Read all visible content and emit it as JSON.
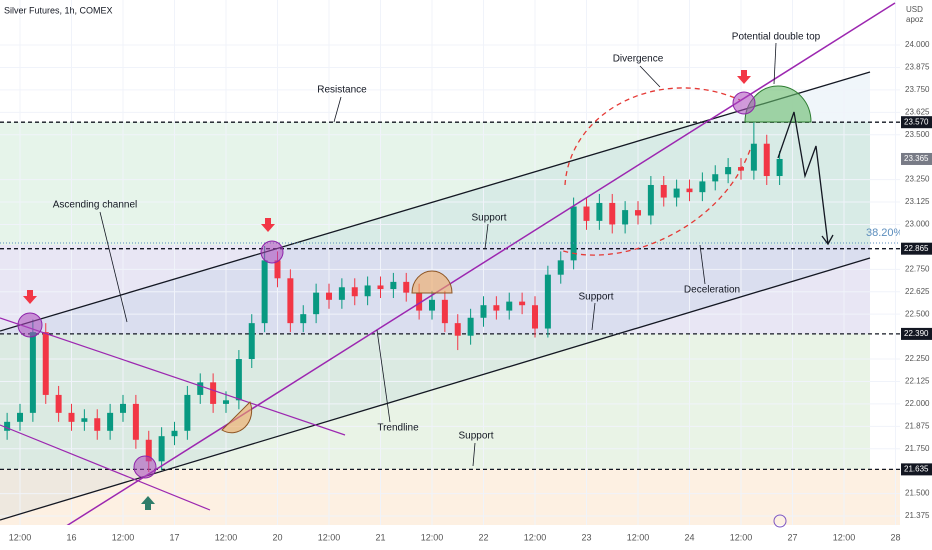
{
  "chart_data": {
    "type": "candlestick",
    "title": "Silver Futures, 1h, COMEX",
    "currency": "USD",
    "scale_label": "apoz",
    "up_color": "#089981",
    "down_color": "#f23645",
    "xlim": [
      -4.66,
      205.05
    ],
    "ylim": [
      21.325,
      24.251
    ],
    "xticks": [
      {
        "value": 0,
        "label": "12:00"
      },
      {
        "value": 12,
        "label": "16"
      },
      {
        "value": 24,
        "label": "12:00"
      },
      {
        "value": 36,
        "label": "17"
      },
      {
        "value": 48,
        "label": "12:00"
      },
      {
        "value": 60,
        "label": "20"
      },
      {
        "value": 72,
        "label": "12:00"
      },
      {
        "value": 84,
        "label": "21"
      },
      {
        "value": 96,
        "label": "12:00"
      },
      {
        "value": 108,
        "label": "22"
      },
      {
        "value": 120,
        "label": "12:00"
      },
      {
        "value": 132,
        "label": "23"
      },
      {
        "value": 144,
        "label": "12:00"
      },
      {
        "value": 156,
        "label": "24"
      },
      {
        "value": 168,
        "label": "12:00"
      },
      {
        "value": 180,
        "label": "27"
      },
      {
        "value": 192,
        "label": "12:00"
      },
      {
        "value": 204,
        "label": "28"
      }
    ],
    "yticks": [
      {
        "value": 24,
        "label": "24.000"
      },
      {
        "value": 23.875,
        "label": "23.875"
      },
      {
        "value": 23.75,
        "label": "23.750"
      },
      {
        "value": 23.625,
        "label": "23.625"
      },
      {
        "value": 23.5,
        "label": "23.500"
      },
      {
        "value": 23.25,
        "label": "23.250"
      },
      {
        "value": 23.125,
        "label": "23.125"
      },
      {
        "value": 23,
        "label": "23.000"
      },
      {
        "value": 22.75,
        "label": "22.750"
      },
      {
        "value": 22.625,
        "label": "22.625"
      },
      {
        "value": 22.5,
        "label": "22.500"
      },
      {
        "value": 22.25,
        "label": "22.250"
      },
      {
        "value": 22.125,
        "label": "22.125"
      },
      {
        "value": 22,
        "label": "22.000"
      },
      {
        "value": 21.875,
        "label": "21.875"
      },
      {
        "value": 21.75,
        "label": "21.750"
      },
      {
        "value": 21.5,
        "label": "21.500"
      },
      {
        "value": 21.375,
        "label": "21.375"
      }
    ],
    "levels": [
      {
        "value": 23.57,
        "label": "23.570"
      },
      {
        "value": 22.865,
        "label": "22.865"
      },
      {
        "value": 22.39,
        "label": "22.390"
      },
      {
        "value": 21.635,
        "label": "21.635"
      }
    ],
    "last_price": {
      "value": 23.365,
      "label": "23.365"
    },
    "fib_level": "38.20%",
    "annotations": [
      "Resistance",
      "Divergence",
      "Potential double top",
      "Ascending channel",
      "Support",
      "Support",
      "Support",
      "Trendline",
      "Deceleration"
    ],
    "candles": {
      "x": [
        -3,
        0,
        3,
        6,
        9,
        12,
        15,
        18,
        21,
        24,
        27,
        30,
        33,
        36,
        39,
        42,
        45,
        48,
        51,
        54,
        57,
        60,
        63,
        66,
        69,
        72,
        75,
        78,
        81,
        84,
        87,
        90,
        93,
        96,
        99,
        102,
        105,
        108,
        111,
        114,
        117,
        120,
        123,
        126,
        129,
        132,
        135,
        138,
        141,
        144,
        147,
        150,
        153,
        156,
        159,
        162,
        165,
        168,
        171,
        174,
        177
      ],
      "open": [
        21.85,
        21.9,
        21.95,
        22.4,
        22.05,
        21.95,
        21.9,
        21.92,
        21.85,
        21.95,
        22.0,
        21.8,
        21.68,
        21.82,
        21.85,
        22.05,
        22.12,
        22.0,
        22.02,
        22.25,
        22.45,
        22.8,
        22.7,
        22.45,
        22.5,
        22.62,
        22.58,
        22.65,
        22.6,
        22.66,
        22.64,
        22.68,
        22.62,
        22.52,
        22.58,
        22.45,
        22.38,
        22.48,
        22.55,
        22.52,
        22.57,
        22.55,
        22.42,
        22.72,
        22.8,
        23.1,
        23.02,
        23.12,
        23.0,
        23.08,
        23.05,
        23.22,
        23.15,
        23.2,
        23.18,
        23.24,
        23.28,
        23.32,
        23.3,
        23.45,
        23.27
      ],
      "high": [
        21.95,
        22.0,
        22.47,
        22.45,
        22.1,
        22.0,
        21.97,
        21.97,
        22.0,
        22.05,
        22.05,
        21.85,
        21.87,
        21.9,
        22.1,
        22.17,
        22.17,
        22.07,
        22.3,
        22.5,
        22.88,
        22.85,
        22.75,
        22.55,
        22.67,
        22.67,
        22.7,
        22.7,
        22.71,
        22.71,
        22.73,
        22.73,
        22.67,
        22.63,
        22.63,
        22.5,
        22.53,
        22.6,
        22.6,
        22.62,
        22.62,
        22.6,
        22.77,
        22.85,
        23.15,
        23.15,
        23.17,
        23.17,
        23.13,
        23.13,
        23.27,
        23.27,
        23.25,
        23.25,
        23.29,
        23.33,
        23.37,
        23.37,
        23.57,
        23.5,
        23.41
      ],
      "low": [
        21.8,
        21.85,
        21.9,
        22.0,
        21.9,
        21.85,
        21.85,
        21.8,
        21.8,
        21.9,
        21.75,
        21.62,
        21.63,
        21.77,
        21.8,
        22.0,
        21.95,
        21.95,
        21.97,
        22.2,
        22.4,
        22.65,
        22.4,
        22.4,
        22.45,
        22.53,
        22.53,
        22.55,
        22.55,
        22.59,
        22.59,
        22.57,
        22.47,
        22.47,
        22.4,
        22.3,
        22.33,
        22.43,
        22.47,
        22.47,
        22.5,
        22.37,
        22.37,
        22.67,
        22.75,
        22.97,
        22.97,
        22.95,
        22.95,
        23.0,
        23.0,
        23.1,
        23.1,
        23.13,
        23.13,
        23.19,
        23.23,
        23.25,
        23.25,
        23.22,
        23.22
      ],
      "close": [
        21.9,
        21.95,
        22.4,
        22.05,
        21.95,
        21.9,
        21.92,
        21.85,
        21.95,
        22.0,
        21.8,
        21.68,
        21.82,
        21.85,
        22.05,
        22.12,
        22.0,
        22.02,
        22.25,
        22.45,
        22.8,
        22.7,
        22.45,
        22.5,
        22.62,
        22.58,
        22.65,
        22.6,
        22.66,
        22.64,
        22.68,
        22.62,
        22.52,
        22.58,
        22.45,
        22.38,
        22.48,
        22.55,
        22.52,
        22.57,
        22.55,
        22.42,
        22.72,
        22.8,
        23.1,
        23.02,
        23.12,
        23.0,
        23.08,
        23.05,
        23.22,
        23.15,
        23.2,
        23.18,
        23.24,
        23.28,
        23.32,
        23.3,
        23.45,
        23.27,
        23.365
      ]
    }
  }
}
